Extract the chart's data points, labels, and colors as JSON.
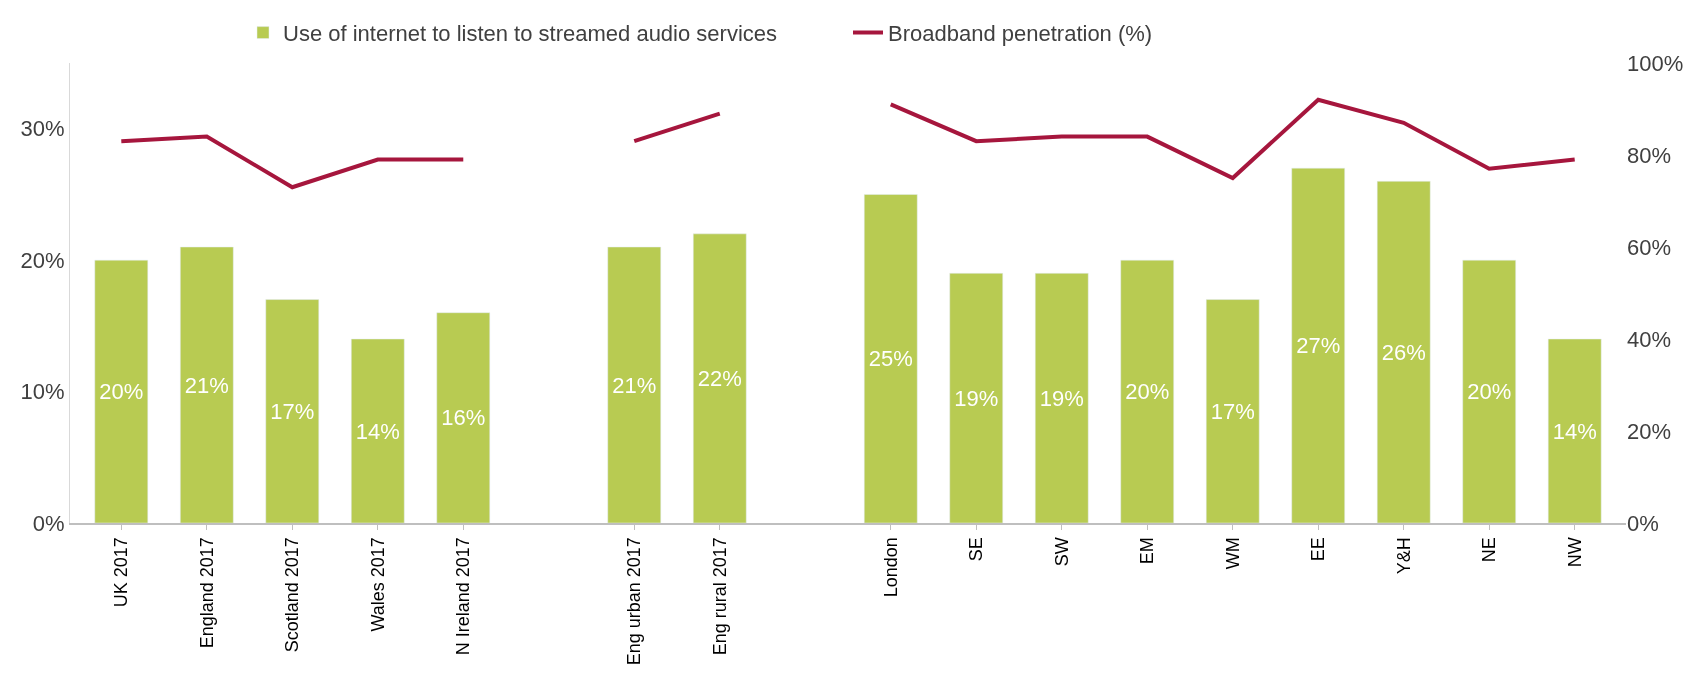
{
  "chart_data": {
    "type": "bar",
    "categories": [
      "UK 2017",
      "England 2017",
      "Scotland 2017",
      "Wales 2017",
      "N Ireland 2017",
      null,
      "Eng urban 2017",
      "Eng rural 2017",
      null,
      "London",
      "SE",
      "SW",
      "EM",
      "WM",
      "EE",
      "Y&H",
      "NE",
      "NW"
    ],
    "series": [
      {
        "name": "Use of internet to listen to streamed audio services",
        "color": "#b8cb52",
        "values": [
          20,
          21,
          17,
          14,
          16,
          null,
          21,
          22,
          null,
          25,
          19,
          19,
          20,
          17,
          27,
          26,
          20,
          14
        ],
        "value_labels": [
          "20%",
          "21%",
          "17%",
          "14%",
          "16%",
          null,
          "21%",
          "22%",
          null,
          "25%",
          "19%",
          "19%",
          "20%",
          "17%",
          "27%",
          "26%",
          "20%",
          "14%"
        ]
      },
      {
        "name": "Broadband penetration (%)",
        "type": "line",
        "axis": "y2",
        "color": "#a6163d",
        "line_style": "solid",
        "marker": "none",
        "values": [
          83,
          84,
          73,
          79,
          79,
          null,
          83,
          89,
          null,
          91,
          83,
          84,
          84,
          75,
          92,
          87,
          77,
          79
        ]
      }
    ],
    "ylim": [
      0,
      35
    ],
    "yticks": [
      {
        "value": 0,
        "label": "0%"
      },
      {
        "value": 10,
        "label": "10%"
      },
      {
        "value": 20,
        "label": "20%"
      },
      {
        "value": 30,
        "label": "30%"
      }
    ],
    "y2lim": [
      0,
      100
    ],
    "y2ticks": [
      {
        "value": 0,
        "label": "0%"
      },
      {
        "value": 20,
        "label": "20%"
      },
      {
        "value": 40,
        "label": "40%"
      },
      {
        "value": 60,
        "label": "60%"
      },
      {
        "value": 80,
        "label": "80%"
      },
      {
        "value": 100,
        "label": "100%"
      }
    ],
    "grid": false,
    "legend": "top"
  }
}
